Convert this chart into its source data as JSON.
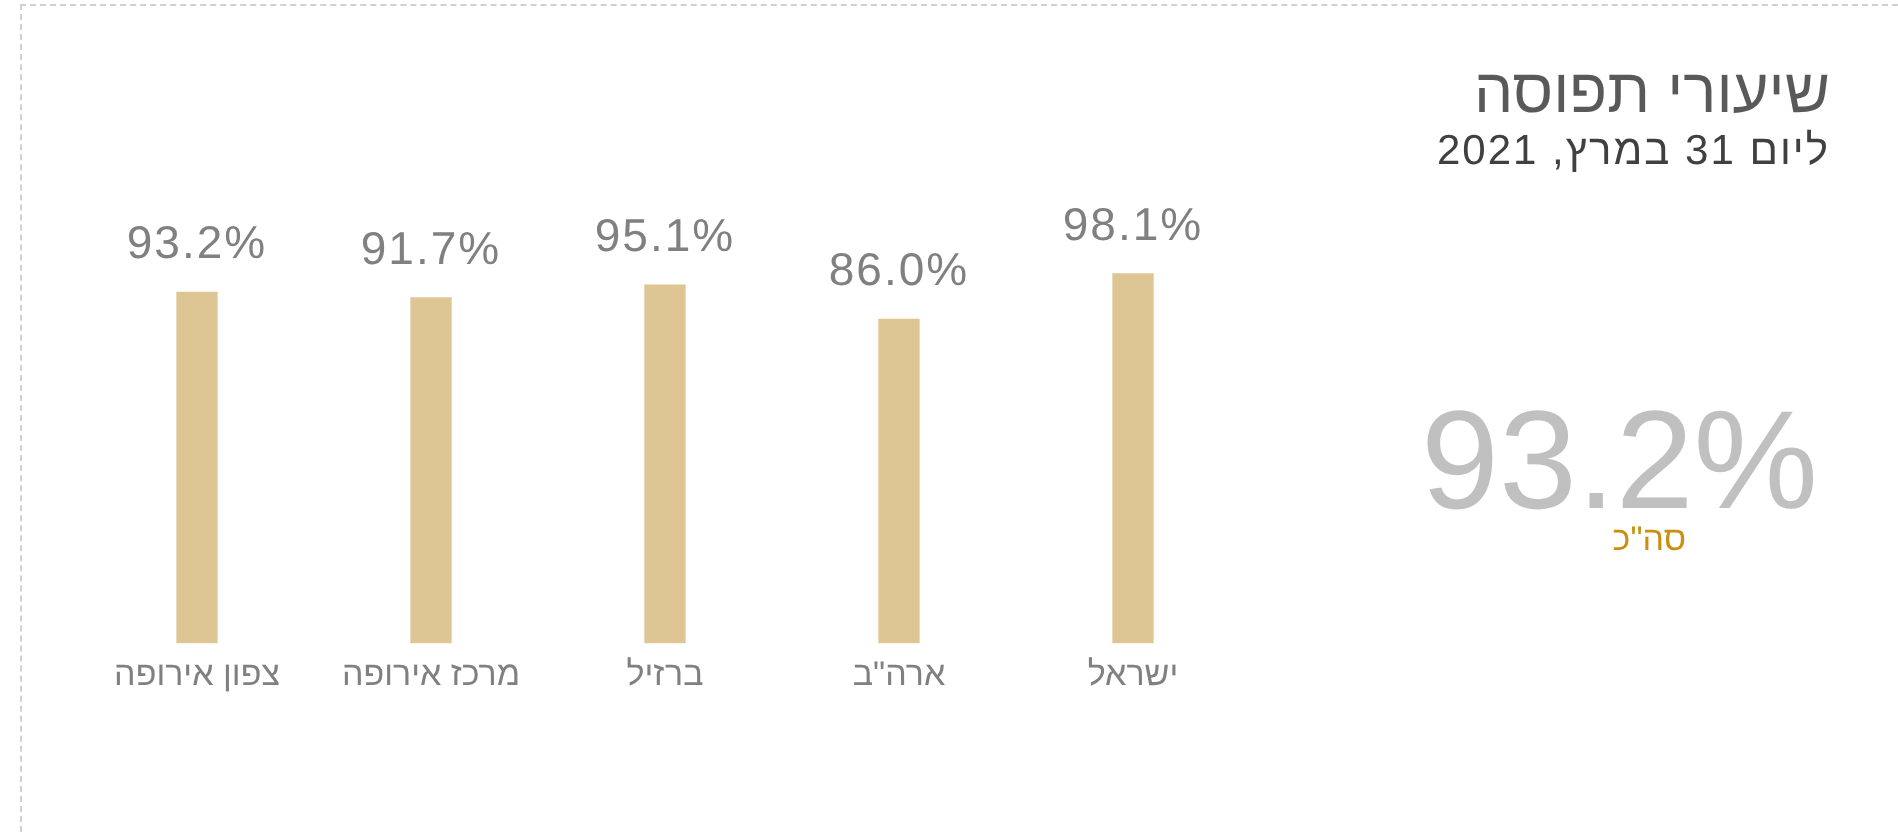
{
  "chart_data": {
    "type": "bar",
    "title": "שיעורי תפוסה",
    "subtitle": "ליום 31 במרץ, 2021",
    "categories": [
      "צפון אירופה",
      "מרכז אירופה",
      "ברזיל",
      "ארה\"ב",
      "ישראל"
    ],
    "values": [
      93.2,
      91.7,
      95.1,
      86.0,
      98.1
    ],
    "value_labels": [
      "93.2%",
      "91.7%",
      "95.1%",
      "86.0%",
      "98.1%"
    ],
    "color": "#dec594",
    "annotations": [
      "93.2%",
      "סה\"כ"
    ],
    "grid": false,
    "legend": false
  }
}
